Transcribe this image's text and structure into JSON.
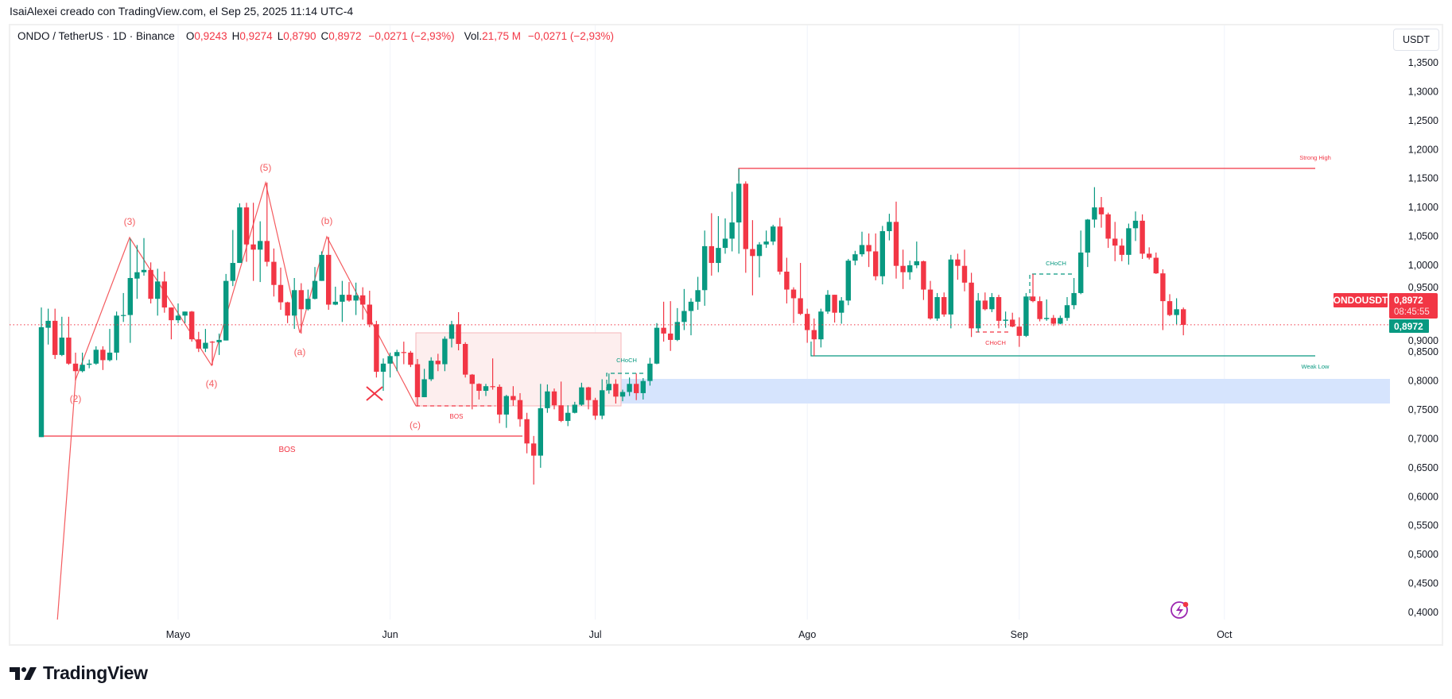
{
  "credit": "IsaiAlexei creado con TradingView.com, el Sep 25, 2025 11:14 UTC-4",
  "legend": {
    "symbol": "ONDO / TetherUS · 1D · Binance",
    "o_label": "O",
    "o": "0,9243",
    "h_label": "H",
    "h": "0,9274",
    "l_label": "L",
    "l": "0,8790",
    "c_label": "C",
    "c": "0,8972",
    "change": "−0,0271 (−2,93%)",
    "vol_label": "Vol.",
    "vol": "21,75 M",
    "vol_change": "−0,0271 (−2,93%)"
  },
  "currency_button": "USDT",
  "price_tags": {
    "symbol": "ONDOUSDT",
    "last_price": "0,8972",
    "countdown": "08:45:55",
    "green_price": "0,8972"
  },
  "annotations": {
    "strong_high": "Strong High",
    "weak_low": "Weak Low",
    "bos_main": "BOS",
    "bos_box": "BOS",
    "choch_jul": "CHoCH",
    "choch_aug": "CHoCH",
    "choch_sep": "CHoCH",
    "wave_2": "(2)",
    "wave_3": "(3)",
    "wave_4": "(4)",
    "wave_5": "(5)",
    "wave_a": "(a)",
    "wave_b": "(b)",
    "wave_c": "(c)"
  },
  "logo_text": "TradingView",
  "colors": {
    "up": "#089981",
    "down": "#f23645",
    "zone": "#d6e4fd",
    "box": "#fdeeee",
    "alert": "#9c27b0"
  },
  "chart_data": {
    "type": "candlestick",
    "title": "ONDO / TetherUS · 1D · Binance",
    "ylim": [
      0.4,
      1.35
    ],
    "y_ticks": [
      "1,3500",
      "1,3000",
      "1,2500",
      "1,2000",
      "1,1500",
      "1,1000",
      "1,0500",
      "1,0000",
      "0,9500",
      "0,9000",
      "0,8500",
      "0,8000",
      "0,7500",
      "0,7000",
      "0,6500",
      "0,6000",
      "0,5500",
      "0,5000",
      "0,4500",
      "0,4000"
    ],
    "x_ticks": [
      {
        "label": "Mayo",
        "day_index": 20
      },
      {
        "label": "Jun",
        "day_index": 51
      },
      {
        "label": "Jul",
        "day_index": 81
      },
      {
        "label": "Ago",
        "day_index": 112
      },
      {
        "label": "Sep",
        "day_index": 143
      },
      {
        "label": "Oct",
        "day_index": 173
      }
    ],
    "last_price": 0.8972,
    "levels": {
      "strong_high": 1.167,
      "weak_low": 0.843,
      "bos_main": 0.703,
      "demand_zone": [
        0.761,
        0.804
      ],
      "box": [
        0.757,
        0.883
      ]
    },
    "ohlc_fields": [
      "open",
      "high",
      "low",
      "close"
    ],
    "candles": [
      [
        0.703,
        0.927,
        0.703,
        0.893
      ],
      [
        0.892,
        0.925,
        0.863,
        0.904
      ],
      [
        0.904,
        0.925,
        0.838,
        0.845
      ],
      [
        0.845,
        0.911,
        0.843,
        0.875
      ],
      [
        0.875,
        0.911,
        0.828,
        0.83
      ],
      [
        0.83,
        0.849,
        0.801,
        0.817
      ],
      [
        0.817,
        0.849,
        0.815,
        0.828
      ],
      [
        0.828,
        0.837,
        0.822,
        0.83
      ],
      [
        0.83,
        0.86,
        0.828,
        0.854
      ],
      [
        0.854,
        0.86,
        0.819,
        0.836
      ],
      [
        0.836,
        0.89,
        0.834,
        0.849
      ],
      [
        0.849,
        0.92,
        0.836,
        0.913
      ],
      [
        0.913,
        0.952,
        0.902,
        0.914
      ],
      [
        0.914,
        1.046,
        0.866,
        0.978
      ],
      [
        0.977,
        1.035,
        0.942,
        0.988
      ],
      [
        0.988,
        1.047,
        0.982,
        0.992
      ],
      [
        0.992,
        1.005,
        0.934,
        0.942
      ],
      [
        0.942,
        0.994,
        0.913,
        0.972
      ],
      [
        0.972,
        0.989,
        0.918,
        0.927
      ],
      [
        0.927,
        0.927,
        0.872,
        0.905
      ],
      [
        0.905,
        0.934,
        0.9,
        0.913
      ],
      [
        0.913,
        0.92,
        0.9,
        0.92
      ],
      [
        0.92,
        0.921,
        0.868,
        0.872
      ],
      [
        0.872,
        0.885,
        0.85,
        0.856
      ],
      [
        0.856,
        0.89,
        0.85,
        0.866
      ],
      [
        0.868,
        0.869,
        0.827,
        0.867
      ],
      [
        0.867,
        0.882,
        0.845,
        0.871
      ],
      [
        0.87,
        0.985,
        0.87,
        0.973
      ],
      [
        0.973,
        1.061,
        0.964,
        1.004
      ],
      [
        1.004,
        1.107,
        1.004,
        1.1
      ],
      [
        1.1,
        1.108,
        1.006,
        1.036
      ],
      [
        1.036,
        1.108,
        0.973,
        1.027
      ],
      [
        1.027,
        1.076,
        0.971,
        1.042
      ],
      [
        1.042,
        1.143,
        0.998,
        1.006
      ],
      [
        1.006,
        1.029,
        0.946,
        0.966
      ],
      [
        0.966,
        0.996,
        0.923,
        0.936
      ],
      [
        0.936,
        0.937,
        0.9,
        0.913
      ],
      [
        0.913,
        0.978,
        0.89,
        0.957
      ],
      [
        0.957,
        0.969,
        0.882,
        0.924
      ],
      [
        0.924,
        0.958,
        0.922,
        0.942
      ],
      [
        0.942,
        0.997,
        0.941,
        0.973
      ],
      [
        0.973,
        1.024,
        0.973,
        1.018
      ],
      [
        1.018,
        1.049,
        0.923,
        0.932
      ],
      [
        0.932,
        0.963,
        0.931,
        0.937
      ],
      [
        0.937,
        0.973,
        0.902,
        0.949
      ],
      [
        0.949,
        0.971,
        0.937,
        0.939
      ],
      [
        0.939,
        0.97,
        0.914,
        0.948
      ],
      [
        0.948,
        0.962,
        0.906,
        0.932
      ],
      [
        0.932,
        0.956,
        0.893,
        0.898
      ],
      [
        0.898,
        0.904,
        0.806,
        0.816
      ],
      [
        0.816,
        0.839,
        0.783,
        0.83
      ],
      [
        0.83,
        0.849,
        0.806,
        0.843
      ],
      [
        0.843,
        0.854,
        0.817,
        0.85
      ],
      [
        0.85,
        0.868,
        0.829,
        0.849
      ],
      [
        0.849,
        0.852,
        0.824,
        0.828
      ],
      [
        0.829,
        0.838,
        0.756,
        0.772
      ],
      [
        0.772,
        0.821,
        0.772,
        0.803
      ],
      [
        0.803,
        0.841,
        0.8,
        0.835
      ],
      [
        0.835,
        0.847,
        0.817,
        0.829
      ],
      [
        0.829,
        0.877,
        0.817,
        0.873
      ],
      [
        0.873,
        0.904,
        0.858,
        0.898
      ],
      [
        0.898,
        0.919,
        0.853,
        0.864
      ],
      [
        0.864,
        0.867,
        0.806,
        0.811
      ],
      [
        0.811,
        0.812,
        0.751,
        0.795
      ],
      [
        0.795,
        0.796,
        0.768,
        0.783
      ],
      [
        0.783,
        0.795,
        0.774,
        0.791
      ],
      [
        0.791,
        0.839,
        0.785,
        0.79
      ],
      [
        0.79,
        0.794,
        0.727,
        0.742
      ],
      [
        0.742,
        0.776,
        0.719,
        0.774
      ],
      [
        0.774,
        0.791,
        0.757,
        0.767
      ],
      [
        0.767,
        0.779,
        0.721,
        0.734
      ],
      [
        0.734,
        0.745,
        0.675,
        0.692
      ],
      [
        0.692,
        0.705,
        0.621,
        0.671
      ],
      [
        0.671,
        0.795,
        0.65,
        0.753
      ],
      [
        0.753,
        0.794,
        0.745,
        0.782
      ],
      [
        0.782,
        0.787,
        0.751,
        0.758
      ],
      [
        0.758,
        0.799,
        0.729,
        0.731
      ],
      [
        0.731,
        0.758,
        0.722,
        0.745
      ],
      [
        0.745,
        0.764,
        0.744,
        0.759
      ],
      [
        0.759,
        0.797,
        0.757,
        0.789
      ],
      [
        0.789,
        0.79,
        0.751,
        0.767
      ],
      [
        0.767,
        0.771,
        0.733,
        0.74
      ],
      [
        0.74,
        0.803,
        0.734,
        0.784
      ],
      [
        0.784,
        0.813,
        0.778,
        0.795
      ],
      [
        0.795,
        0.803,
        0.761,
        0.773
      ],
      [
        0.773,
        0.785,
        0.765,
        0.781
      ],
      [
        0.781,
        0.806,
        0.774,
        0.795
      ],
      [
        0.795,
        0.813,
        0.767,
        0.779
      ],
      [
        0.779,
        0.805,
        0.768,
        0.8
      ],
      [
        0.8,
        0.84,
        0.792,
        0.83
      ],
      [
        0.83,
        0.9,
        0.829,
        0.892
      ],
      [
        0.892,
        0.937,
        0.868,
        0.882
      ],
      [
        0.882,
        0.938,
        0.852,
        0.871
      ],
      [
        0.871,
        0.926,
        0.869,
        0.902
      ],
      [
        0.902,
        0.959,
        0.888,
        0.921
      ],
      [
        0.921,
        0.943,
        0.879,
        0.937
      ],
      [
        0.937,
        0.98,
        0.923,
        0.957
      ],
      [
        0.957,
        1.06,
        0.93,
        1.033
      ],
      [
        1.033,
        1.09,
        0.982,
        1.004
      ],
      [
        1.004,
        1.085,
        0.988,
        1.03
      ],
      [
        1.03,
        1.081,
        1.02,
        1.046
      ],
      [
        1.046,
        1.127,
        1.024,
        1.074
      ],
      [
        1.074,
        1.167,
        1.02,
        1.141
      ],
      [
        1.141,
        1.145,
        0.987,
        1.028
      ],
      [
        1.028,
        1.078,
        0.948,
        1.016
      ],
      [
        1.016,
        1.04,
        0.979,
        1.036
      ],
      [
        1.036,
        1.06,
        1.03,
        1.041
      ],
      [
        1.041,
        1.07,
        1.035,
        1.067
      ],
      [
        1.067,
        1.082,
        0.984,
        0.989
      ],
      [
        0.989,
        1.013,
        0.934,
        0.958
      ],
      [
        0.958,
        0.962,
        0.9,
        0.943
      ],
      [
        0.943,
        1.004,
        0.914,
        0.916
      ],
      [
        0.916,
        0.925,
        0.866,
        0.888
      ],
      [
        0.888,
        0.908,
        0.843,
        0.872
      ],
      [
        0.872,
        0.925,
        0.858,
        0.92
      ],
      [
        0.92,
        0.957,
        0.916,
        0.949
      ],
      [
        0.949,
        0.949,
        0.901,
        0.918
      ],
      [
        0.918,
        0.945,
        0.899,
        0.939
      ],
      [
        0.939,
        1.011,
        0.931,
        1.008
      ],
      [
        1.008,
        1.025,
        1.0,
        1.019
      ],
      [
        1.019,
        1.058,
        1.015,
        1.035
      ],
      [
        1.035,
        1.055,
        0.997,
        1.024
      ],
      [
        1.024,
        1.055,
        0.974,
        0.981
      ],
      [
        0.981,
        1.068,
        0.967,
        1.059
      ],
      [
        1.059,
        1.089,
        1.043,
        1.075
      ],
      [
        1.075,
        1.11,
        0.977,
        0.999
      ],
      [
        0.999,
        1.027,
        0.959,
        0.988
      ],
      [
        0.988,
        1.008,
        0.975,
        1.0
      ],
      [
        1.0,
        1.041,
        0.995,
        1.007
      ],
      [
        1.007,
        1.008,
        0.94,
        0.958
      ],
      [
        0.958,
        0.973,
        0.906,
        0.908
      ],
      [
        0.908,
        0.952,
        0.904,
        0.945
      ],
      [
        0.945,
        0.953,
        0.911,
        0.915
      ],
      [
        0.915,
        1.018,
        0.891,
        1.01
      ],
      [
        1.01,
        1.02,
        0.975,
        0.999
      ],
      [
        0.999,
        1.027,
        0.955,
        0.97
      ],
      [
        0.97,
        0.987,
        0.876,
        0.891
      ],
      [
        0.891,
        0.952,
        0.884,
        0.939
      ],
      [
        0.939,
        0.953,
        0.922,
        0.924
      ],
      [
        0.924,
        0.952,
        0.919,
        0.945
      ],
      [
        0.945,
        0.949,
        0.891,
        0.904
      ],
      [
        0.904,
        0.92,
        0.892,
        0.906
      ],
      [
        0.906,
        0.918,
        0.893,
        0.894
      ],
      [
        0.894,
        0.91,
        0.859,
        0.878
      ],
      [
        0.878,
        0.952,
        0.876,
        0.946
      ],
      [
        0.946,
        0.985,
        0.936,
        0.938
      ],
      [
        0.938,
        0.946,
        0.903,
        0.907
      ],
      [
        0.907,
        0.941,
        0.904,
        0.909
      ],
      [
        0.909,
        0.914,
        0.895,
        0.899
      ],
      [
        0.899,
        0.913,
        0.898,
        0.909
      ],
      [
        0.909,
        0.945,
        0.904,
        0.931
      ],
      [
        0.931,
        0.978,
        0.924,
        0.952
      ],
      [
        0.952,
        1.06,
        0.95,
        1.022
      ],
      [
        1.022,
        1.08,
        0.997,
        1.079
      ],
      [
        1.079,
        1.135,
        1.065,
        1.1
      ],
      [
        1.1,
        1.118,
        1.065,
        1.088
      ],
      [
        1.088,
        1.091,
        1.03,
        1.046
      ],
      [
        1.046,
        1.075,
        1.007,
        1.034
      ],
      [
        1.034,
        1.046,
        1.007,
        1.018
      ],
      [
        1.018,
        1.072,
        1.001,
        1.064
      ],
      [
        1.064,
        1.093,
        1.042,
        1.077
      ],
      [
        1.077,
        1.088,
        1.011,
        1.02
      ],
      [
        1.02,
        1.031,
        1.01,
        1.013
      ],
      [
        1.013,
        1.022,
        0.985,
        0.986
      ],
      [
        0.986,
        0.993,
        0.888,
        0.938
      ],
      [
        0.938,
        0.95,
        0.912,
        0.914
      ],
      [
        0.914,
        0.943,
        0.898,
        0.924
      ],
      [
        0.924,
        0.927,
        0.879,
        0.897
      ]
    ]
  }
}
